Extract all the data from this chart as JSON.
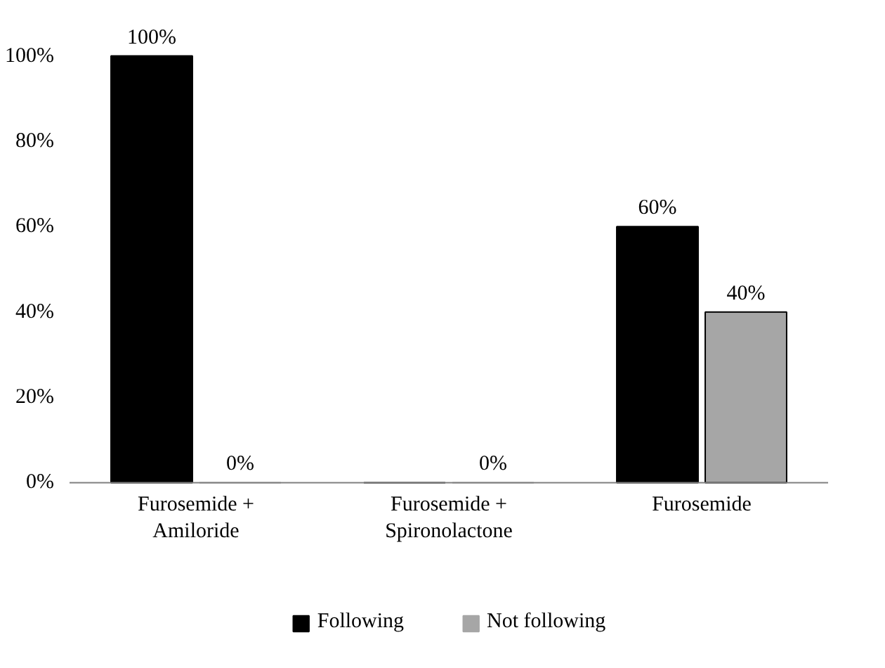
{
  "chart_data": {
    "type": "bar",
    "categories": [
      "Furosemide +\nAmiloride",
      "Furosemide +\nSpironolactone",
      "Furosemide"
    ],
    "series": [
      {
        "name": "Following",
        "color": "#000000",
        "values": [
          100,
          0,
          60
        ],
        "value_labels": [
          "100%",
          null,
          "60%"
        ]
      },
      {
        "name": "Not following",
        "color": "#a6a6a6",
        "values": [
          0,
          0,
          40
        ],
        "value_labels": [
          "0%",
          "0%",
          "40%"
        ]
      }
    ],
    "ylim": [
      0,
      100
    ],
    "yticks": [
      {
        "value": 0,
        "label": "0%"
      },
      {
        "value": 20,
        "label": "20%"
      },
      {
        "value": 40,
        "label": "40%"
      },
      {
        "value": 60,
        "label": "60%"
      },
      {
        "value": 80,
        "label": "80%"
      },
      {
        "value": 100,
        "label": "100%"
      }
    ],
    "grid": false,
    "legend": "bottom"
  }
}
